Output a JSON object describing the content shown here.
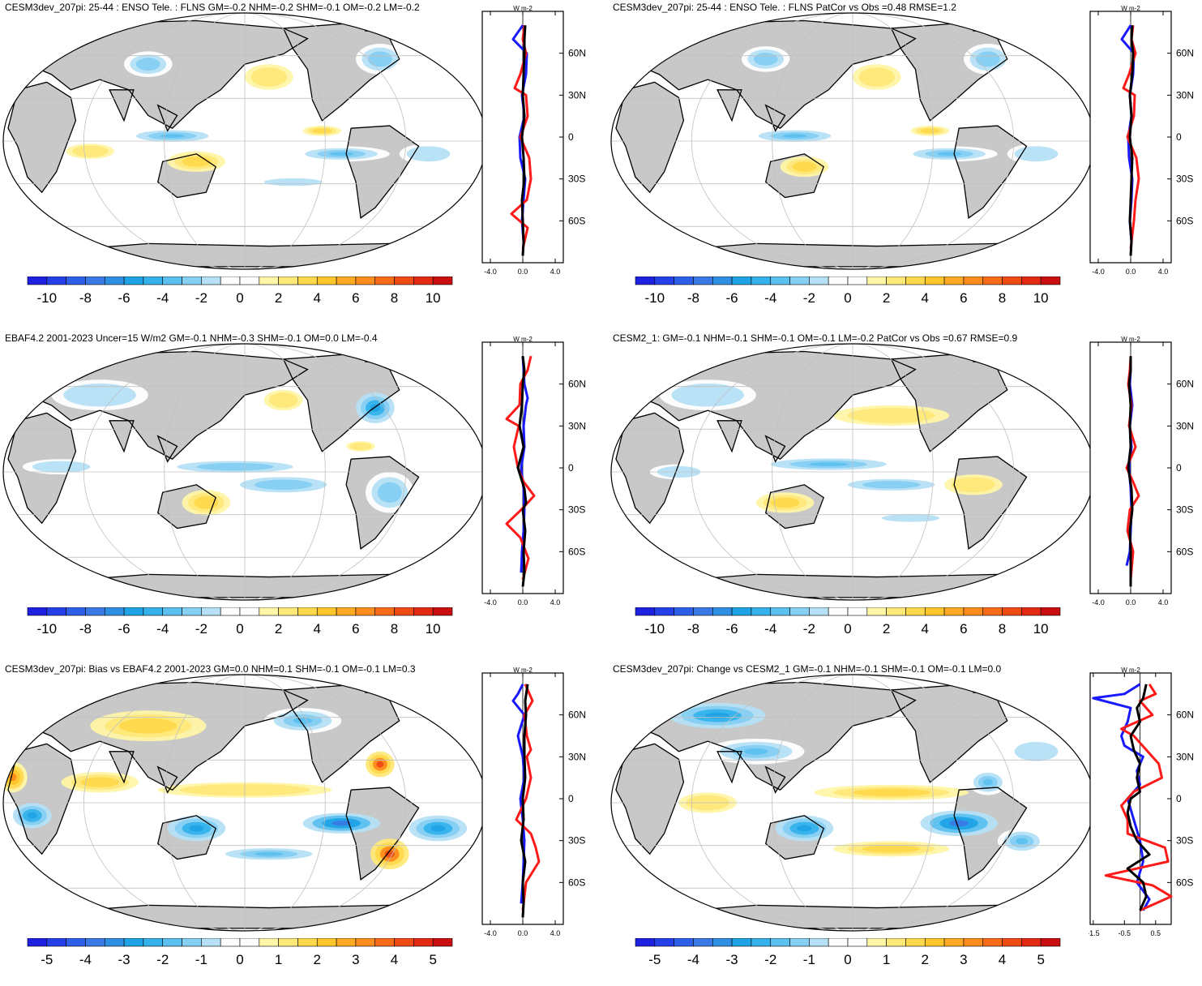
{
  "figure": {
    "description_colors": {
      "land": "#c8c8c8",
      "ocean": "#ffffff",
      "coast": "#000000",
      "grid": "#c0c0c0",
      "model_line": "#000000",
      "obs_line": "#ff1a1a",
      "other_line": "#1a1aff"
    }
  },
  "chart_data": [
    {
      "type": "heatmap",
      "title": "CESM3dev_207pi: 25-44 : ENSO Tele. : FLNS GM=-0.2 NHM=-0.2 SHM=-0.1 OM=-0.2 LM=-0.2",
      "colorbar": {
        "ticks": [
          "-10",
          "-8",
          "-6",
          "-4",
          "-2",
          "0",
          "2",
          "4",
          "6",
          "8",
          "10"
        ],
        "min": -11,
        "max": 11
      },
      "zonal": {
        "unit_label": "W m-2",
        "xticks": [
          "-4.0",
          "0.0",
          "4.0"
        ],
        "xlim": [
          -5,
          5
        ],
        "lat_labels": [
          "60N",
          "30N",
          "0",
          "30S",
          "60S"
        ],
        "series": [
          {
            "name": "black",
            "lat": [
              80,
              70,
              60,
              45,
              30,
              15,
              0,
              -15,
              -30,
              -45,
              -60,
              -75,
              -85
            ],
            "values": [
              0.3,
              0.2,
              0.2,
              0.1,
              0.0,
              0.2,
              -0.1,
              0.1,
              0.2,
              -0.1,
              0.0,
              0.1,
              0.0
            ]
          },
          {
            "name": "red",
            "lat": [
              80,
              70,
              60,
              45,
              35,
              30,
              15,
              0,
              -15,
              -30,
              -45,
              -55,
              -65,
              -80
            ],
            "values": [
              0.2,
              0.0,
              0.4,
              -0.3,
              -1.0,
              0.4,
              0.6,
              -0.3,
              0.8,
              1.0,
              0.5,
              -1.4,
              0.6,
              0.0
            ]
          },
          {
            "name": "blue",
            "lat": [
              80,
              70,
              60,
              45,
              30,
              15,
              0,
              -15,
              -30,
              -45,
              -60,
              -75
            ],
            "values": [
              0.0,
              -1.2,
              0.5,
              0.4,
              -0.1,
              0.2,
              -0.4,
              -0.3,
              0.3,
              0.1,
              -0.1,
              0.1
            ]
          }
        ]
      }
    },
    {
      "type": "heatmap",
      "title": "CESM3dev_207pi: 25-44 : ENSO Tele. : FLNS PatCor vs Obs =0.48 RMSE=1.2",
      "colorbar": {
        "ticks": [
          "-10",
          "-8",
          "-6",
          "-4",
          "-2",
          "0",
          "2",
          "4",
          "6",
          "8",
          "10"
        ],
        "min": -11,
        "max": 11
      },
      "zonal": {
        "unit_label": "W m-2",
        "xticks": [
          "-4.0",
          "0.0",
          "4.0"
        ],
        "xlim": [
          -5,
          5
        ],
        "lat_labels": [
          "60N",
          "30N",
          "0",
          "30S",
          "60S"
        ],
        "series": [
          {
            "name": "black",
            "lat": [
              80,
              70,
              60,
              45,
              30,
              15,
              0,
              -15,
              -30,
              -45,
              -60,
              -75,
              -85
            ],
            "values": [
              0.2,
              0.1,
              0.3,
              0.2,
              -0.1,
              0.1,
              -0.1,
              0.2,
              0.1,
              0.0,
              -0.1,
              0.1,
              0.0
            ]
          },
          {
            "name": "red",
            "lat": [
              80,
              70,
              60,
              45,
              35,
              30,
              15,
              0,
              -15,
              -30,
              -45,
              -60,
              -80
            ],
            "values": [
              0.3,
              0.1,
              0.6,
              -0.2,
              -0.9,
              0.5,
              0.4,
              -0.4,
              0.7,
              1.0,
              0.6,
              0.4,
              0.0
            ]
          },
          {
            "name": "blue",
            "lat": [
              80,
              70,
              60,
              45,
              30,
              15,
              0,
              -15,
              -30,
              -45,
              -60,
              -75
            ],
            "values": [
              0.0,
              -1.1,
              0.4,
              0.3,
              -0.1,
              0.1,
              -0.3,
              -0.2,
              0.2,
              0.1,
              -0.1,
              0.1
            ]
          }
        ]
      }
    },
    {
      "type": "heatmap",
      "title": "EBAF4.2 2001-2023 Uncer=15 W/m2 GM=-0.1 NHM=-0.3 SHM=-0.1 OM=0.0 LM=-0.4",
      "colorbar": {
        "ticks": [
          "-10",
          "-8",
          "-6",
          "-4",
          "-2",
          "0",
          "2",
          "4",
          "6",
          "8",
          "10"
        ],
        "min": -11,
        "max": 11
      },
      "zonal": {
        "unit_label": "W m-2",
        "xticks": [
          "-4.0",
          "0.0",
          "4.0"
        ],
        "xlim": [
          -5,
          5
        ],
        "lat_labels": [
          "60N",
          "30N",
          "0",
          "30S",
          "60S"
        ],
        "series": [
          {
            "name": "black",
            "lat": [
              80,
              70,
              60,
              45,
              30,
              15,
              0,
              -15,
              -25,
              -30,
              -45,
              -60,
              -75,
              -85
            ],
            "values": [
              0.0,
              0.2,
              0.0,
              -0.1,
              -0.4,
              0.1,
              -0.6,
              0.2,
              0.4,
              0.0,
              0.3,
              0.1,
              0.2,
              0.0
            ]
          },
          {
            "name": "red",
            "lat": [
              80,
              70,
              60,
              45,
              35,
              30,
              15,
              0,
              -10,
              -20,
              -30,
              -40,
              -50,
              -65,
              -80
            ],
            "values": [
              1.0,
              0.6,
              -0.3,
              -0.4,
              -2.0,
              -0.5,
              -1.1,
              -0.6,
              0.1,
              1.4,
              -0.2,
              -2.0,
              -0.3,
              0.7,
              0.0
            ]
          },
          {
            "name": "blue",
            "lat": [
              80,
              70,
              60,
              50,
              45,
              30,
              15,
              0,
              -15,
              -30,
              -45,
              -60,
              -75
            ],
            "values": [
              0.0,
              0.1,
              0.2,
              0.6,
              0.4,
              0.1,
              0.2,
              -0.2,
              0.1,
              0.2,
              0.1,
              -0.1,
              -0.2
            ]
          }
        ]
      }
    },
    {
      "type": "heatmap",
      "title": "CESM2_1: GM=-0.1 NHM=-0.1 SHM=-0.1 OM=-0.1 LM=-0.2 PatCor vs Obs =0.67 RMSE=0.9",
      "colorbar": {
        "ticks": [
          "-10",
          "-8",
          "-6",
          "-4",
          "-2",
          "0",
          "2",
          "4",
          "6",
          "8",
          "10"
        ],
        "min": -11,
        "max": 11
      },
      "zonal": {
        "unit_label": "W m-2",
        "xticks": [
          "-4.0",
          "0.0",
          "4.0"
        ],
        "xlim": [
          -5,
          5
        ],
        "lat_labels": [
          "60N",
          "30N",
          "0",
          "30S",
          "60S"
        ],
        "series": [
          {
            "name": "black",
            "lat": [
              80,
              70,
              60,
              45,
              30,
              15,
              0,
              -15,
              -30,
              -45,
              -60,
              -75,
              -85
            ],
            "values": [
              0.0,
              0.0,
              -0.2,
              0.0,
              -0.1,
              0.0,
              -0.3,
              0.1,
              0.2,
              -0.1,
              0.0,
              0.0,
              0.0
            ]
          },
          {
            "name": "red",
            "lat": [
              80,
              70,
              60,
              45,
              30,
              15,
              0,
              -10,
              -20,
              -30,
              -45,
              -60,
              -80
            ],
            "values": [
              0.0,
              -0.1,
              -0.3,
              0.1,
              -0.2,
              0.6,
              -0.5,
              0.3,
              1.0,
              -0.1,
              -0.4,
              0.3,
              0.0
            ]
          },
          {
            "name": "blue",
            "lat": [
              80,
              70,
              60,
              45,
              30,
              15,
              0,
              -15,
              -30,
              -45,
              -60,
              -70
            ],
            "values": [
              0.0,
              0.0,
              -0.1,
              0.2,
              -0.1,
              0.1,
              -0.2,
              0.0,
              0.1,
              0.0,
              -0.1,
              -0.5
            ]
          }
        ]
      }
    },
    {
      "type": "heatmap",
      "title": "CESM3dev_207pi: Bias vs EBAF4.2 2001-2023 GM=0.0 NHM=0.1 SHM=-0.1 OM=-0.1 LM=0.3",
      "colorbar": {
        "ticks": [
          "-5",
          "-4",
          "-3",
          "-2",
          "-1",
          "0",
          "1",
          "2",
          "3",
          "4",
          "5"
        ],
        "min": -5.5,
        "max": 5.5
      },
      "zonal": {
        "unit_label": "W m-2",
        "xticks": [
          "-4.0",
          "0.0",
          "4.0"
        ],
        "xlim": [
          -5,
          5
        ],
        "lat_labels": [
          "60N",
          "30N",
          "0",
          "30S",
          "60S"
        ],
        "series": [
          {
            "name": "black",
            "lat": [
              82,
              70,
              60,
              45,
              30,
              15,
              0,
              -15,
              -30,
              -45,
              -60,
              -75,
              -85
            ],
            "values": [
              0.6,
              0.3,
              0.4,
              0.2,
              0.2,
              0.3,
              0.0,
              0.1,
              -0.2,
              0.3,
              0.0,
              0.1,
              0.0
            ]
          },
          {
            "name": "red",
            "lat": [
              82,
              70,
              60,
              45,
              35,
              30,
              15,
              0,
              -15,
              -25,
              -35,
              -45,
              -60,
              -80
            ],
            "values": [
              0.3,
              1.2,
              0.2,
              0.5,
              1.0,
              0.5,
              1.0,
              0.4,
              -0.8,
              1.0,
              1.6,
              2.0,
              0.4,
              0.0
            ]
          },
          {
            "name": "blue",
            "lat": [
              82,
              75,
              70,
              60,
              45,
              30,
              15,
              0,
              -15,
              -30,
              -45,
              -60,
              -75
            ],
            "values": [
              0.0,
              -0.6,
              -1.2,
              0.2,
              -0.6,
              0.0,
              0.2,
              -0.3,
              0.0,
              0.2,
              0.1,
              0.0,
              -0.2
            ]
          }
        ]
      }
    },
    {
      "type": "heatmap",
      "title": "CESM3dev_207pi: Change vs CESM2_1 GM=-0.1 NHM=-0.1 SHM=-0.1 OM=-0.1 LM=0.0",
      "colorbar": {
        "ticks": [
          "-5",
          "-4",
          "-3",
          "-2",
          "-1",
          "0",
          "1",
          "2",
          "3",
          "4",
          "5"
        ],
        "min": -5.5,
        "max": 5.5
      },
      "zonal": {
        "unit_label": "W m-2",
        "xticks": [
          "-1.5",
          "-0.5",
          "0.5"
        ],
        "xlim": [
          -1.6,
          1.0
        ],
        "lat_labels": [
          "60N",
          "30N",
          "0",
          "30S",
          "60S"
        ],
        "series": [
          {
            "name": "black",
            "lat": [
              82,
              72,
              65,
              55,
              45,
              35,
              25,
              15,
              5,
              0,
              -10,
              -20,
              -30,
              -40,
              -50,
              -60,
              -70,
              -80
            ],
            "values": [
              0.2,
              0.1,
              -0.1,
              0.0,
              -0.3,
              -0.2,
              0.0,
              -0.1,
              0.0,
              -0.3,
              -0.4,
              -0.3,
              -0.1,
              0.3,
              -0.4,
              0.1,
              0.2,
              0.0
            ]
          },
          {
            "name": "red",
            "lat": [
              82,
              75,
              70,
              60,
              50,
              45,
              35,
              25,
              15,
              5,
              -5,
              -15,
              -25,
              -35,
              -45,
              -55,
              -62,
              -70,
              -80
            ],
            "values": [
              0.3,
              0.5,
              0.0,
              0.4,
              -0.6,
              -0.2,
              0.2,
              0.6,
              0.7,
              -0.2,
              -0.6,
              -0.4,
              -0.4,
              0.8,
              0.9,
              -1.1,
              0.4,
              1.0,
              0.0
            ]
          },
          {
            "name": "blue",
            "lat": [
              82,
              75,
              72,
              65,
              55,
              45,
              38,
              30,
              20,
              10,
              0,
              -15,
              -30,
              -45,
              -60,
              -72,
              -80
            ],
            "values": [
              0.0,
              -0.5,
              -1.5,
              -0.3,
              -0.4,
              -0.6,
              -0.5,
              0.1,
              -0.1,
              0.0,
              -0.4,
              -0.2,
              0.0,
              0.1,
              -0.1,
              0.3,
              0.1
            ]
          }
        ]
      }
    }
  ]
}
